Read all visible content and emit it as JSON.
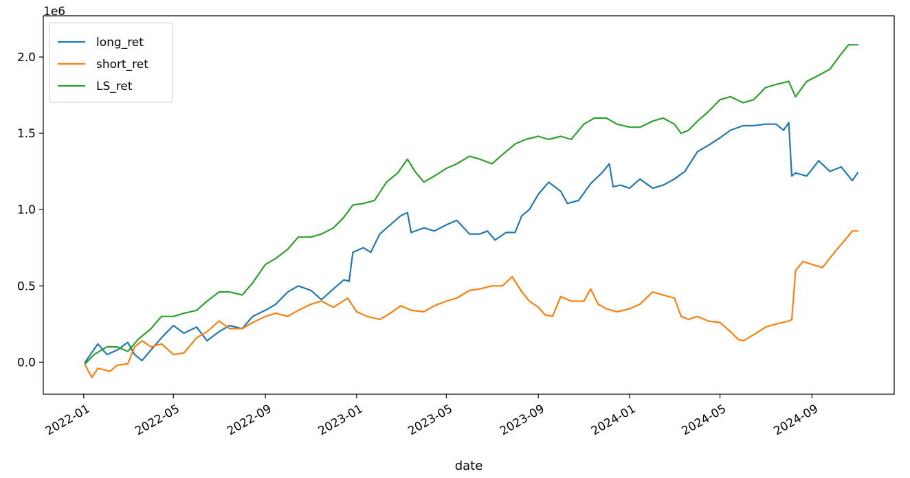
{
  "chart_data": {
    "type": "line",
    "xlabel": "date",
    "ylabel": "",
    "y_offset_label": "1e6",
    "xlim": [
      "2021-11-08",
      "2024-12-20"
    ],
    "ylim": [
      -0.21,
      2.27
    ],
    "grid": false,
    "legend_position": "upper-left",
    "x_ticks": [
      {
        "date": "2022-01-01",
        "label": "2022-01"
      },
      {
        "date": "2022-05-01",
        "label": "2022-05"
      },
      {
        "date": "2022-09-01",
        "label": "2022-09"
      },
      {
        "date": "2023-01-01",
        "label": "2023-01"
      },
      {
        "date": "2023-05-01",
        "label": "2023-05"
      },
      {
        "date": "2023-09-01",
        "label": "2023-09"
      },
      {
        "date": "2024-01-01",
        "label": "2024-01"
      },
      {
        "date": "2024-05-01",
        "label": "2024-05"
      },
      {
        "date": "2024-09-01",
        "label": "2024-09"
      }
    ],
    "y_ticks": [
      {
        "value": 0.0,
        "label": "0.0"
      },
      {
        "value": 0.5,
        "label": "0.5"
      },
      {
        "value": 1.0,
        "label": "1.0"
      },
      {
        "value": 1.5,
        "label": "1.5"
      },
      {
        "value": 2.0,
        "label": "2.0"
      }
    ],
    "series": [
      {
        "name": "long_ret",
        "color": "#1f77b4",
        "points": [
          [
            "2022-01-03",
            0.0
          ],
          [
            "2022-01-20",
            0.12
          ],
          [
            "2022-02-01",
            0.05
          ],
          [
            "2022-02-15",
            0.08
          ],
          [
            "2022-03-01",
            0.13
          ],
          [
            "2022-03-10",
            0.05
          ],
          [
            "2022-03-20",
            0.01
          ],
          [
            "2022-04-01",
            0.08
          ],
          [
            "2022-04-15",
            0.16
          ],
          [
            "2022-05-01",
            0.24
          ],
          [
            "2022-05-15",
            0.19
          ],
          [
            "2022-06-01",
            0.23
          ],
          [
            "2022-06-15",
            0.14
          ],
          [
            "2022-07-01",
            0.2
          ],
          [
            "2022-07-15",
            0.24
          ],
          [
            "2022-08-01",
            0.22
          ],
          [
            "2022-08-15",
            0.3
          ],
          [
            "2022-09-01",
            0.34
          ],
          [
            "2022-09-15",
            0.38
          ],
          [
            "2022-10-01",
            0.46
          ],
          [
            "2022-10-15",
            0.5
          ],
          [
            "2022-11-01",
            0.47
          ],
          [
            "2022-11-15",
            0.41
          ],
          [
            "2022-12-01",
            0.48
          ],
          [
            "2022-12-15",
            0.54
          ],
          [
            "2022-12-22",
            0.53
          ],
          [
            "2022-12-27",
            0.72
          ],
          [
            "2023-01-10",
            0.75
          ],
          [
            "2023-01-20",
            0.72
          ],
          [
            "2023-02-01",
            0.84
          ],
          [
            "2023-02-15",
            0.9
          ],
          [
            "2023-03-01",
            0.96
          ],
          [
            "2023-03-10",
            0.98
          ],
          [
            "2023-03-15",
            0.85
          ],
          [
            "2023-04-01",
            0.88
          ],
          [
            "2023-04-15",
            0.86
          ],
          [
            "2023-05-01",
            0.9
          ],
          [
            "2023-05-15",
            0.93
          ],
          [
            "2023-06-01",
            0.84
          ],
          [
            "2023-06-15",
            0.84
          ],
          [
            "2023-06-25",
            0.86
          ],
          [
            "2023-07-05",
            0.8
          ],
          [
            "2023-07-20",
            0.85
          ],
          [
            "2023-08-01",
            0.85
          ],
          [
            "2023-08-10",
            0.96
          ],
          [
            "2023-08-20",
            1.0
          ],
          [
            "2023-09-01",
            1.1
          ],
          [
            "2023-09-15",
            1.18
          ],
          [
            "2023-10-01",
            1.12
          ],
          [
            "2023-10-10",
            1.04
          ],
          [
            "2023-10-25",
            1.06
          ],
          [
            "2023-11-10",
            1.17
          ],
          [
            "2023-11-25",
            1.24
          ],
          [
            "2023-12-05",
            1.3
          ],
          [
            "2023-12-10",
            1.15
          ],
          [
            "2023-12-20",
            1.16
          ],
          [
            "2024-01-01",
            1.14
          ],
          [
            "2024-01-15",
            1.2
          ],
          [
            "2024-02-01",
            1.14
          ],
          [
            "2024-02-15",
            1.16
          ],
          [
            "2024-03-01",
            1.2
          ],
          [
            "2024-03-15",
            1.25
          ],
          [
            "2024-04-01",
            1.38
          ],
          [
            "2024-04-15",
            1.42
          ],
          [
            "2024-05-01",
            1.47
          ],
          [
            "2024-05-15",
            1.52
          ],
          [
            "2024-06-01",
            1.55
          ],
          [
            "2024-06-15",
            1.55
          ],
          [
            "2024-07-01",
            1.56
          ],
          [
            "2024-07-15",
            1.56
          ],
          [
            "2024-07-25",
            1.52
          ],
          [
            "2024-08-01",
            1.57
          ],
          [
            "2024-08-05",
            1.22
          ],
          [
            "2024-08-10",
            1.24
          ],
          [
            "2024-08-25",
            1.22
          ],
          [
            "2024-09-10",
            1.32
          ],
          [
            "2024-09-25",
            1.25
          ],
          [
            "2024-10-10",
            1.28
          ],
          [
            "2024-10-25",
            1.19
          ],
          [
            "2024-11-01",
            1.24
          ]
        ]
      },
      {
        "name": "short_ret",
        "color": "#ff7f0e",
        "points": [
          [
            "2022-01-03",
            -0.02
          ],
          [
            "2022-01-12",
            -0.1
          ],
          [
            "2022-01-20",
            -0.04
          ],
          [
            "2022-02-05",
            -0.06
          ],
          [
            "2022-02-15",
            -0.02
          ],
          [
            "2022-03-01",
            -0.01
          ],
          [
            "2022-03-10",
            0.1
          ],
          [
            "2022-03-20",
            0.14
          ],
          [
            "2022-04-01",
            0.1
          ],
          [
            "2022-04-15",
            0.12
          ],
          [
            "2022-05-01",
            0.05
          ],
          [
            "2022-05-15",
            0.06
          ],
          [
            "2022-06-01",
            0.16
          ],
          [
            "2022-06-15",
            0.2
          ],
          [
            "2022-07-01",
            0.27
          ],
          [
            "2022-07-15",
            0.22
          ],
          [
            "2022-08-01",
            0.22
          ],
          [
            "2022-08-15",
            0.26
          ],
          [
            "2022-09-01",
            0.3
          ],
          [
            "2022-09-15",
            0.32
          ],
          [
            "2022-10-01",
            0.3
          ],
          [
            "2022-10-15",
            0.34
          ],
          [
            "2022-11-01",
            0.38
          ],
          [
            "2022-11-15",
            0.4
          ],
          [
            "2022-12-01",
            0.36
          ],
          [
            "2022-12-20",
            0.42
          ],
          [
            "2023-01-01",
            0.33
          ],
          [
            "2023-01-15",
            0.3
          ],
          [
            "2023-02-01",
            0.28
          ],
          [
            "2023-02-15",
            0.32
          ],
          [
            "2023-03-01",
            0.37
          ],
          [
            "2023-03-15",
            0.34
          ],
          [
            "2023-04-01",
            0.33
          ],
          [
            "2023-04-15",
            0.37
          ],
          [
            "2023-05-01",
            0.4
          ],
          [
            "2023-05-15",
            0.42
          ],
          [
            "2023-06-01",
            0.47
          ],
          [
            "2023-06-15",
            0.48
          ],
          [
            "2023-07-01",
            0.5
          ],
          [
            "2023-07-15",
            0.5
          ],
          [
            "2023-07-28",
            0.56
          ],
          [
            "2023-08-10",
            0.46
          ],
          [
            "2023-08-20",
            0.4
          ],
          [
            "2023-09-01",
            0.36
          ],
          [
            "2023-09-10",
            0.31
          ],
          [
            "2023-09-20",
            0.3
          ],
          [
            "2023-10-01",
            0.43
          ],
          [
            "2023-10-15",
            0.4
          ],
          [
            "2023-11-01",
            0.4
          ],
          [
            "2023-11-10",
            0.48
          ],
          [
            "2023-11-20",
            0.38
          ],
          [
            "2023-12-01",
            0.35
          ],
          [
            "2023-12-15",
            0.33
          ],
          [
            "2024-01-01",
            0.35
          ],
          [
            "2024-01-15",
            0.38
          ],
          [
            "2024-02-01",
            0.46
          ],
          [
            "2024-02-15",
            0.44
          ],
          [
            "2024-03-01",
            0.42
          ],
          [
            "2024-03-10",
            0.3
          ],
          [
            "2024-03-20",
            0.28
          ],
          [
            "2024-04-01",
            0.3
          ],
          [
            "2024-04-15",
            0.27
          ],
          [
            "2024-05-01",
            0.26
          ],
          [
            "2024-05-15",
            0.2
          ],
          [
            "2024-05-25",
            0.15
          ],
          [
            "2024-06-01",
            0.14
          ],
          [
            "2024-06-15",
            0.18
          ],
          [
            "2024-07-01",
            0.23
          ],
          [
            "2024-07-15",
            0.25
          ],
          [
            "2024-08-01",
            0.27
          ],
          [
            "2024-08-05",
            0.28
          ],
          [
            "2024-08-10",
            0.6
          ],
          [
            "2024-08-20",
            0.66
          ],
          [
            "2024-09-01",
            0.64
          ],
          [
            "2024-09-15",
            0.62
          ],
          [
            "2024-10-01",
            0.72
          ],
          [
            "2024-10-15",
            0.8
          ],
          [
            "2024-10-25",
            0.86
          ],
          [
            "2024-11-01",
            0.86
          ]
        ]
      },
      {
        "name": "LS_ret",
        "color": "#2ca02c",
        "points": [
          [
            "2022-01-03",
            -0.01
          ],
          [
            "2022-01-15",
            0.05
          ],
          [
            "2022-02-01",
            0.1
          ],
          [
            "2022-02-15",
            0.1
          ],
          [
            "2022-03-01",
            0.07
          ],
          [
            "2022-03-15",
            0.15
          ],
          [
            "2022-04-01",
            0.22
          ],
          [
            "2022-04-15",
            0.3
          ],
          [
            "2022-05-01",
            0.3
          ],
          [
            "2022-05-15",
            0.32
          ],
          [
            "2022-06-01",
            0.34
          ],
          [
            "2022-06-15",
            0.4
          ],
          [
            "2022-07-01",
            0.46
          ],
          [
            "2022-07-15",
            0.46
          ],
          [
            "2022-08-01",
            0.44
          ],
          [
            "2022-08-15",
            0.52
          ],
          [
            "2022-09-01",
            0.64
          ],
          [
            "2022-09-15",
            0.68
          ],
          [
            "2022-10-01",
            0.74
          ],
          [
            "2022-10-15",
            0.82
          ],
          [
            "2022-11-01",
            0.82
          ],
          [
            "2022-11-15",
            0.84
          ],
          [
            "2022-12-01",
            0.88
          ],
          [
            "2022-12-15",
            0.95
          ],
          [
            "2022-12-27",
            1.03
          ],
          [
            "2023-01-10",
            1.04
          ],
          [
            "2023-01-25",
            1.06
          ],
          [
            "2023-02-10",
            1.18
          ],
          [
            "2023-02-25",
            1.24
          ],
          [
            "2023-03-10",
            1.33
          ],
          [
            "2023-03-20",
            1.25
          ],
          [
            "2023-04-01",
            1.18
          ],
          [
            "2023-04-15",
            1.22
          ],
          [
            "2023-05-01",
            1.27
          ],
          [
            "2023-05-15",
            1.3
          ],
          [
            "2023-06-01",
            1.35
          ],
          [
            "2023-06-15",
            1.33
          ],
          [
            "2023-07-01",
            1.3
          ],
          [
            "2023-07-15",
            1.36
          ],
          [
            "2023-08-01",
            1.43
          ],
          [
            "2023-08-15",
            1.46
          ],
          [
            "2023-09-01",
            1.48
          ],
          [
            "2023-09-15",
            1.46
          ],
          [
            "2023-10-01",
            1.48
          ],
          [
            "2023-10-15",
            1.46
          ],
          [
            "2023-11-01",
            1.56
          ],
          [
            "2023-11-15",
            1.6
          ],
          [
            "2023-12-01",
            1.6
          ],
          [
            "2023-12-15",
            1.56
          ],
          [
            "2024-01-01",
            1.54
          ],
          [
            "2024-01-15",
            1.54
          ],
          [
            "2024-02-01",
            1.58
          ],
          [
            "2024-02-15",
            1.6
          ],
          [
            "2024-03-01",
            1.56
          ],
          [
            "2024-03-10",
            1.5
          ],
          [
            "2024-03-20",
            1.52
          ],
          [
            "2024-04-01",
            1.58
          ],
          [
            "2024-04-15",
            1.64
          ],
          [
            "2024-05-01",
            1.72
          ],
          [
            "2024-05-15",
            1.74
          ],
          [
            "2024-06-01",
            1.7
          ],
          [
            "2024-06-15",
            1.72
          ],
          [
            "2024-07-01",
            1.8
          ],
          [
            "2024-07-15",
            1.82
          ],
          [
            "2024-08-01",
            1.84
          ],
          [
            "2024-08-10",
            1.74
          ],
          [
            "2024-08-25",
            1.84
          ],
          [
            "2024-09-10",
            1.88
          ],
          [
            "2024-09-25",
            1.92
          ],
          [
            "2024-10-10",
            2.02
          ],
          [
            "2024-10-20",
            2.08
          ],
          [
            "2024-11-01",
            2.08
          ]
        ]
      }
    ]
  }
}
